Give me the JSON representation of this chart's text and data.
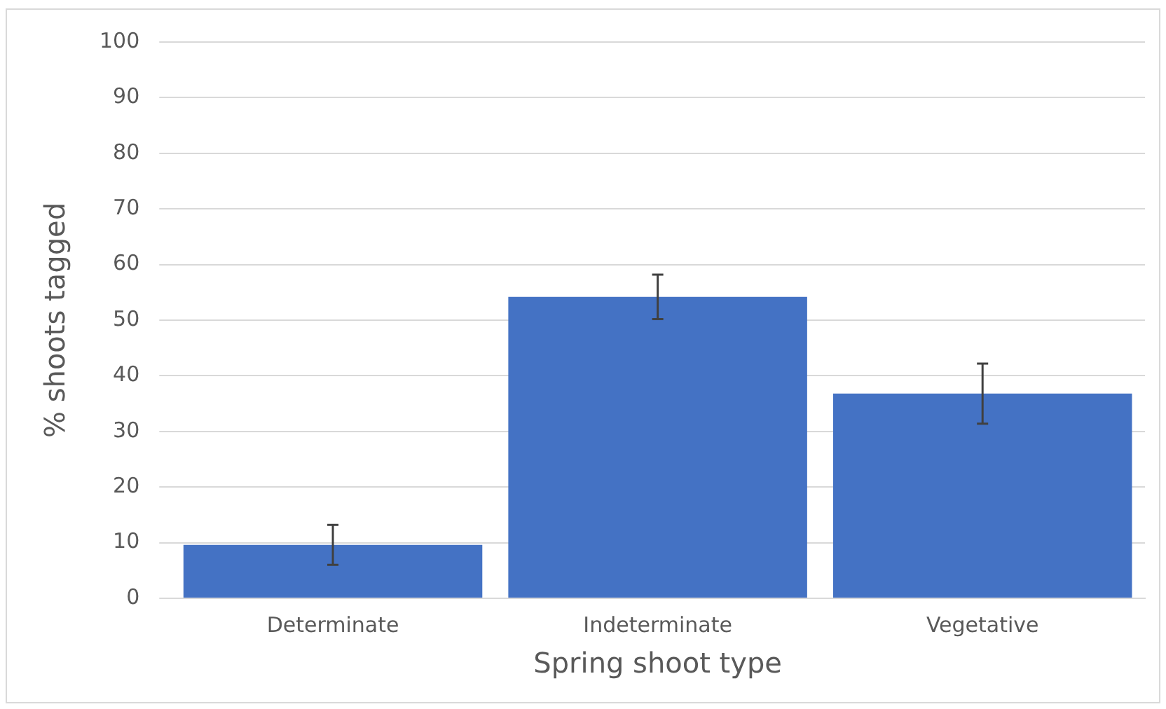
{
  "chart_data": {
    "type": "bar",
    "xlabel": "Spring shoot type",
    "ylabel": "% shoots tagged",
    "categories": [
      "Determinate",
      "Indeterminate",
      "Vegetative"
    ],
    "values": [
      9.6,
      54.2,
      36.8
    ],
    "errors": [
      3.6,
      4,
      5.4
    ],
    "color": "#4472c4",
    "ylim": [
      0,
      100
    ],
    "yticks": [
      0,
      10,
      20,
      30,
      40,
      50,
      60,
      70,
      80,
      90,
      100
    ],
    "grid": "y"
  }
}
